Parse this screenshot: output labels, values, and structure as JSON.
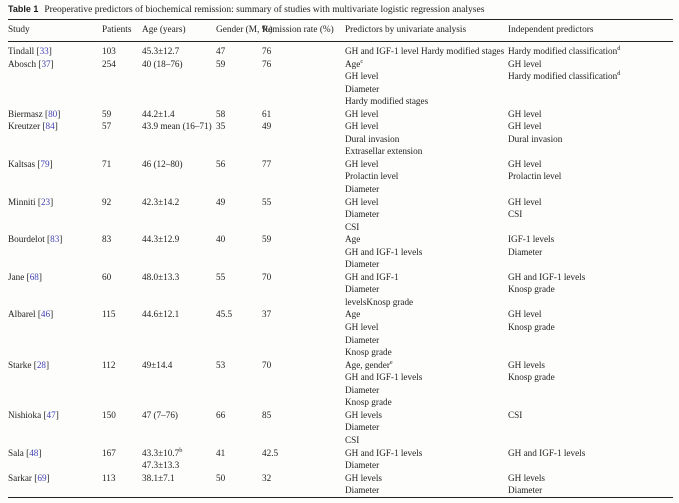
{
  "title": {
    "label": "Table 1",
    "text": "Preoperative predictors of biochemical remission: summary of studies with multivariate logistic regression analyses"
  },
  "columns": [
    "Study",
    "Patients",
    "Age (years)",
    "Gender (M, %)",
    "Remission rate (%)",
    "Predictors by univariate analysis",
    "Independent predictors"
  ],
  "rows": [
    {
      "study": "Tindall",
      "ref": "33",
      "patients": "103",
      "age": [
        "45.3±12.7"
      ],
      "gender": "47",
      "remission": "76",
      "predictors": [
        "GH and IGF-1 level Hardy modified stages"
      ],
      "independent": [
        {
          "text": "Hardy modified classification",
          "sup": "d"
        }
      ]
    },
    {
      "study": "Abosch",
      "ref": "37",
      "patients": "254",
      "age": [
        "40 (18–76)"
      ],
      "gender": "59",
      "remission": "76",
      "predictors": [
        {
          "text": "Age",
          "sup": "c"
        },
        "GH level",
        "Diameter",
        "Hardy modified stages"
      ],
      "independent": [
        "GH level",
        {
          "text": "Hardy modified classification",
          "sup": "d"
        }
      ]
    },
    {
      "study": "Biermasz",
      "ref": "80",
      "patients": "59",
      "age": [
        "44.2±1.4"
      ],
      "gender": "58",
      "remission": "61",
      "predictors": [
        "GH level"
      ],
      "independent": [
        "GH level"
      ]
    },
    {
      "study": "Kreutzer",
      "ref": "84",
      "patients": "57",
      "age": [
        "43.9 mean (16–71)"
      ],
      "gender": "35",
      "remission": "49",
      "predictors": [
        "GH level",
        "Dural invasion",
        "Extrasellar extension"
      ],
      "independent": [
        "GH level",
        "Dural invasion"
      ]
    },
    {
      "study": "Kaltsas",
      "ref": "79",
      "patients": "71",
      "age": [
        "46 (12–80)"
      ],
      "gender": "56",
      "remission": "77",
      "predictors": [
        "GH level",
        "Prolactin level",
        "Diameter"
      ],
      "independent": [
        "GH level",
        "Prolactin level"
      ]
    },
    {
      "study": "Minniti",
      "ref": "23",
      "patients": "92",
      "age": [
        "42.3±14.2"
      ],
      "gender": "49",
      "remission": "55",
      "predictors": [
        "GH level",
        "Diameter",
        "CSI"
      ],
      "independent": [
        "GH level",
        "CSI"
      ]
    },
    {
      "study": "Bourdelot",
      "ref": "83",
      "patients": "83",
      "age": [
        "44.3±12.9"
      ],
      "gender": "40",
      "remission": "59",
      "predictors": [
        "Age",
        "GH and IGF-1 levels",
        "Diameter"
      ],
      "independent": [
        "IGF-1 levels",
        "Diameter"
      ]
    },
    {
      "study": "Jane",
      "ref": "68",
      "patients": "60",
      "age": [
        "48.0±13.3"
      ],
      "gender": "55",
      "remission": "70",
      "predictors": [
        "GH and IGF-1",
        "Diameter",
        "levelsKnosp grade"
      ],
      "independent": [
        "GH and IGF-1 levels",
        "Knosp grade"
      ]
    },
    {
      "study": "Albarel",
      "ref": "46",
      "patients": "115",
      "age": [
        "44.6±12.1"
      ],
      "gender": "45.5",
      "remission": "37",
      "predictors": [
        "Age",
        "GH level",
        "Diameter",
        "Knosp grade"
      ],
      "independent": [
        "GH level",
        "Knosp grade"
      ]
    },
    {
      "study": "Starke",
      "ref": "28",
      "patients": "112",
      "age": [
        "49±14.4"
      ],
      "gender": "53",
      "remission": "70",
      "predictors": [
        {
          "text": "Age, gender",
          "sup": "e"
        },
        "GH and IGF-1 levels",
        "Diameter",
        "Knosp grade"
      ],
      "independent": [
        "GH levels",
        "Knosp grade"
      ]
    },
    {
      "study": "Nishioka",
      "ref": "47",
      "patients": "150",
      "age": [
        "47 (7–76)"
      ],
      "gender": "66",
      "remission": "85",
      "predictors": [
        "GH levels",
        "Diameter",
        "CSI"
      ],
      "independent": [
        "CSI"
      ]
    },
    {
      "study": "Sala",
      "ref": "48",
      "patients": "167",
      "age": [
        {
          "text": "43.3±10.7",
          "sup": "b"
        },
        "47.3±13.3"
      ],
      "gender": "41",
      "remission": "42.5",
      "predictors": [
        "GH and IGF-1 levels",
        "Diameter"
      ],
      "independent": [
        "GH and IGF-1 levels"
      ]
    },
    {
      "study": "Sarkar",
      "ref": "69",
      "patients": "113",
      "age": [
        "38.1±7.1"
      ],
      "gender": "50",
      "remission": "32",
      "predictors": [
        "GH levels",
        "Diameter"
      ],
      "independent": [
        "GH levels",
        "Diameter"
      ]
    }
  ]
}
